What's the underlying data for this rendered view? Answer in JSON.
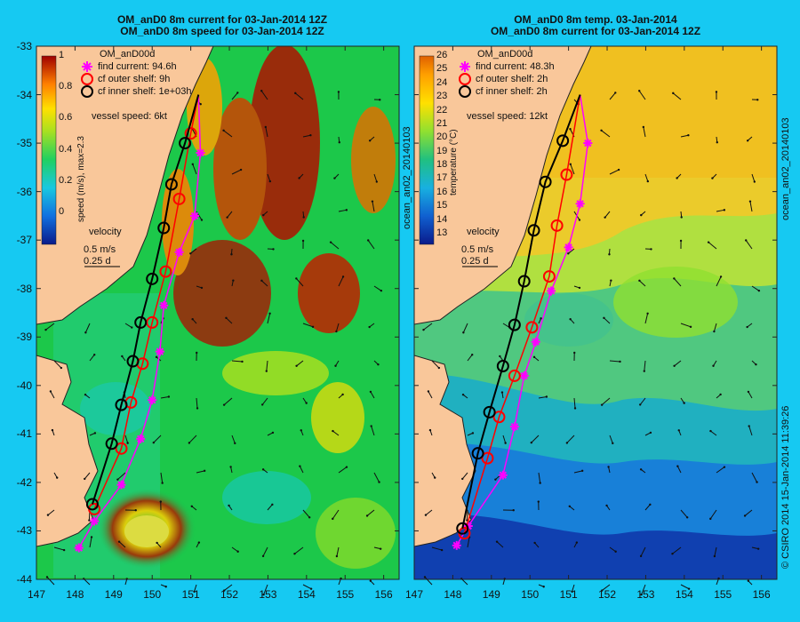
{
  "left_panel": {
    "title_line1": "OM_anD0 8m current for 03-Jan-2014 12Z",
    "title_line2": "OM_anD0 8m speed for 03-Jan-2014 12Z",
    "model_name": "OM_anD00d",
    "legend": {
      "find_current": "find current: 94.6h",
      "outer_shelf": "cf outer shelf: 9h",
      "inner_shelf": "cf inner shelf: 1e+03h"
    },
    "vessel_speed": "vessel speed: 6kt",
    "colorbar_label": "speed (m/s), max=2.3",
    "colorbar_ticks": [
      "1",
      "0.8",
      "0.6",
      "0.4",
      "0.2",
      "0"
    ],
    "velocity_label": "velocity",
    "velocity_scale_1": "0.5 m/s",
    "velocity_scale_2": "0.25 d",
    "side_label": "ocean_an02_20140103"
  },
  "right_panel": {
    "title_line1": "OM_anD0 8m temp. 03-Jan-2014",
    "title_line2": "OM_anD0 8m current for 03-Jan-2014 12Z",
    "model_name": "OM_anD00d",
    "legend": {
      "find_current": "find current: 48.3h",
      "outer_shelf": "cf outer shelf: 2h",
      "inner_shelf": "cf inner shelf: 2h"
    },
    "vessel_speed": "vessel speed: 12kt",
    "colorbar_label": "temperature (°C)",
    "colorbar_ticks": [
      "26",
      "25",
      "24",
      "23",
      "22",
      "21",
      "20",
      "19",
      "18",
      "17",
      "16",
      "15",
      "14",
      "13"
    ],
    "velocity_label": "velocity",
    "velocity_scale_1": "0.5 m/s",
    "velocity_scale_2": "0.25 d",
    "side_label_top": "ocean_an02_20140103",
    "side_label_bottom": "© CSIRO 2014   15-Jan-2014 11:39:26"
  },
  "axes": {
    "lat_ticks": [
      "-33",
      "-34",
      "-35",
      "-36",
      "-37",
      "-38",
      "-39",
      "-40",
      "-41",
      "-42",
      "-43",
      "-44"
    ],
    "lon_ticks": [
      "147",
      "148",
      "149",
      "150",
      "151",
      "152",
      "153",
      "154",
      "155",
      "156"
    ]
  },
  "colors": {
    "background": "#16c9f2",
    "land": "#f9c79a",
    "find_current": "#ff00ff",
    "outer_shelf": "#ff0000",
    "inner_shelf": "#000000"
  },
  "routes": {
    "left": {
      "find_current": [
        [
          148.1,
          -43.35
        ],
        [
          148.5,
          -42.8
        ],
        [
          149.2,
          -42.05
        ],
        [
          149.7,
          -41.1
        ],
        [
          150.0,
          -40.3
        ],
        [
          150.2,
          -39.3
        ],
        [
          150.3,
          -38.35
        ],
        [
          150.7,
          -37.25
        ],
        [
          151.1,
          -36.5
        ],
        [
          151.25,
          -35.2
        ],
        [
          151.2,
          -34.0
        ]
      ],
      "outer_shelf": [
        [
          148.5,
          -42.55
        ],
        [
          149.2,
          -41.3
        ],
        [
          149.45,
          -40.35
        ],
        [
          149.75,
          -39.55
        ],
        [
          150.0,
          -38.7
        ],
        [
          150.35,
          -37.65
        ],
        [
          150.7,
          -36.15
        ],
        [
          151.0,
          -34.8
        ],
        [
          151.2,
          -34.0
        ]
      ],
      "inner_shelf": [
        [
          148.45,
          -42.45
        ],
        [
          148.95,
          -41.2
        ],
        [
          149.2,
          -40.4
        ],
        [
          149.5,
          -39.5
        ],
        [
          149.7,
          -38.7
        ],
        [
          150.0,
          -37.8
        ],
        [
          150.3,
          -36.75
        ],
        [
          150.5,
          -35.85
        ],
        [
          150.85,
          -35.0
        ],
        [
          151.2,
          -34.0
        ]
      ]
    },
    "right": {
      "find_current": [
        [
          148.1,
          -43.3
        ],
        [
          148.4,
          -42.9
        ],
        [
          149.3,
          -41.85
        ],
        [
          149.6,
          -40.85
        ],
        [
          149.85,
          -39.8
        ],
        [
          150.15,
          -39.1
        ],
        [
          150.55,
          -38.05
        ],
        [
          151.0,
          -37.15
        ],
        [
          151.3,
          -36.25
        ],
        [
          151.5,
          -35.0
        ],
        [
          151.3,
          -34.0
        ]
      ],
      "outer_shelf": [
        [
          148.3,
          -43.05
        ],
        [
          148.9,
          -41.5
        ],
        [
          149.2,
          -40.65
        ],
        [
          149.6,
          -39.8
        ],
        [
          150.05,
          -38.8
        ],
        [
          150.5,
          -37.75
        ],
        [
          150.7,
          -36.7
        ],
        [
          150.95,
          -35.65
        ],
        [
          151.3,
          -34.0
        ]
      ],
      "inner_shelf": [
        [
          148.25,
          -42.95
        ],
        [
          148.65,
          -41.4
        ],
        [
          148.95,
          -40.55
        ],
        [
          149.3,
          -39.6
        ],
        [
          149.6,
          -38.75
        ],
        [
          149.85,
          -37.85
        ],
        [
          150.1,
          -36.8
        ],
        [
          150.4,
          -35.8
        ],
        [
          150.85,
          -34.95
        ],
        [
          151.3,
          -34.0
        ]
      ]
    }
  }
}
